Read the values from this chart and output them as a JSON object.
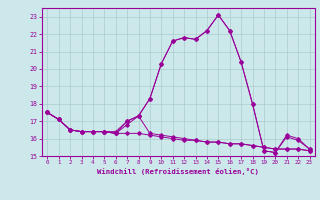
{
  "x": [
    0,
    1,
    2,
    3,
    4,
    5,
    6,
    7,
    8,
    9,
    10,
    11,
    12,
    13,
    14,
    15,
    16,
    17,
    18,
    19,
    20,
    21,
    22,
    23
  ],
  "line1": [
    17.5,
    17.1,
    16.5,
    16.4,
    16.4,
    16.4,
    16.4,
    17.0,
    17.3,
    18.3,
    20.3,
    21.6,
    21.8,
    21.7,
    22.2,
    23.1,
    22.2,
    20.4,
    18.0,
    15.3,
    15.2,
    16.2,
    16.0,
    15.4
  ],
  "line2": [
    17.5,
    17.1,
    16.5,
    16.4,
    16.4,
    16.4,
    16.3,
    16.3,
    16.3,
    16.2,
    16.1,
    16.0,
    15.9,
    15.9,
    15.8,
    15.8,
    15.7,
    15.7,
    15.6,
    15.5,
    15.4,
    15.4,
    15.4,
    15.3
  ],
  "line3": [
    17.5,
    17.1,
    16.5,
    16.4,
    16.4,
    16.4,
    16.3,
    16.8,
    17.3,
    16.3,
    16.2,
    16.1,
    16.0,
    15.9,
    15.8,
    15.8,
    15.7,
    15.7,
    15.6,
    15.5,
    15.4,
    15.4,
    15.4,
    15.3
  ],
  "line4": [
    17.5,
    17.1,
    16.5,
    16.4,
    16.4,
    16.4,
    16.3,
    17.0,
    17.3,
    18.3,
    20.3,
    21.6,
    21.8,
    21.7,
    22.2,
    23.1,
    22.2,
    20.4,
    18.0,
    15.3,
    15.2,
    16.1,
    15.9,
    15.4
  ],
  "line_color": "#990099",
  "bg_color": "#cce8ea",
  "grid_color": "#aacccc",
  "xlabel": "Windchill (Refroidissement éolien,°C)",
  "ylim": [
    15,
    23.5
  ],
  "xlim": [
    -0.5,
    23.5
  ],
  "yticks": [
    15,
    16,
    17,
    18,
    19,
    20,
    21,
    22,
    23
  ],
  "xticks": [
    0,
    1,
    2,
    3,
    4,
    5,
    6,
    7,
    8,
    9,
    10,
    11,
    12,
    13,
    14,
    15,
    16,
    17,
    18,
    19,
    20,
    21,
    22,
    23
  ]
}
